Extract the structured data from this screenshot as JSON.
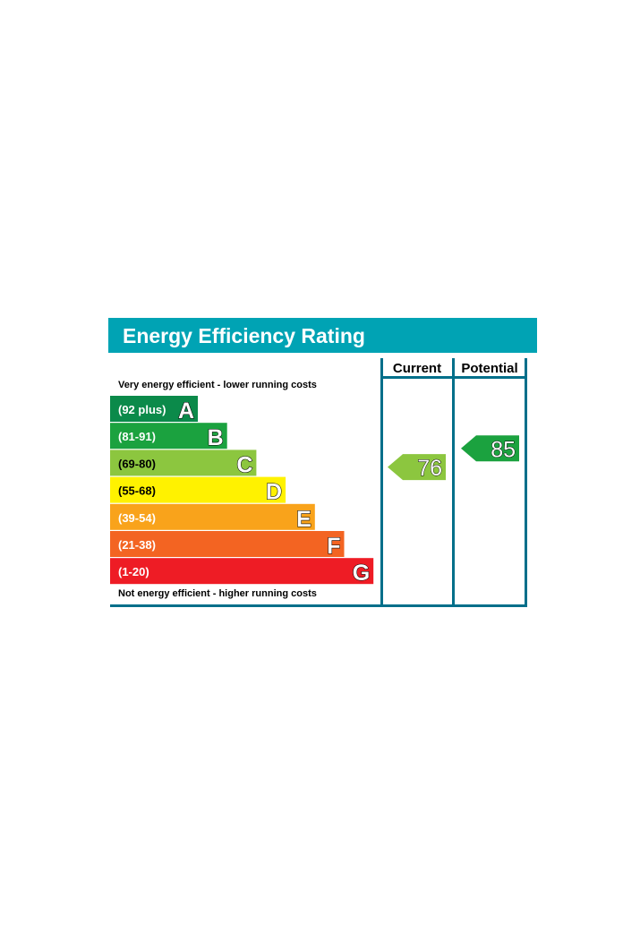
{
  "chart_data": {
    "type": "bar",
    "title": "Energy Efficiency Rating",
    "columns": [
      "Current",
      "Potential"
    ],
    "top_note": "Very energy efficient - lower running costs",
    "bottom_note": "Not energy efficient - higher running costs",
    "bands": [
      {
        "letter": "A",
        "range": "(92 plus)",
        "min": 92,
        "max": 100,
        "color": "#008054"
      },
      {
        "letter": "B",
        "range": "(81-91)",
        "min": 81,
        "max": 91,
        "color": "#19b459"
      },
      {
        "letter": "C",
        "range": "(69-80)",
        "min": 69,
        "max": 80,
        "color": "#8dce46"
      },
      {
        "letter": "D",
        "range": "(55-68)",
        "min": 55,
        "max": 68,
        "color": "#ffd500"
      },
      {
        "letter": "E",
        "range": "(39-54)",
        "min": 39,
        "max": 54,
        "color": "#fcaa65"
      },
      {
        "letter": "F",
        "range": "(21-38)",
        "min": 21,
        "max": 38,
        "color": "#ef8023"
      },
      {
        "letter": "G",
        "range": "(1-20)",
        "min": 1,
        "max": 20,
        "color": "#e9153b"
      }
    ],
    "ratings": [
      {
        "column": "Current",
        "value": 76,
        "band": "C",
        "color": "#8dce46"
      },
      {
        "column": "Potential",
        "value": 85,
        "band": "B",
        "color": "#19b459"
      }
    ]
  },
  "colors": {
    "header_bg": "#00a3b4",
    "frame": "#006f8a",
    "band_colors_observed": [
      "#0b8a4a",
      "#1ba23f",
      "#8cc63f",
      "#fff200",
      "#f9a31b",
      "#f36422",
      "#ee1c25"
    ]
  }
}
